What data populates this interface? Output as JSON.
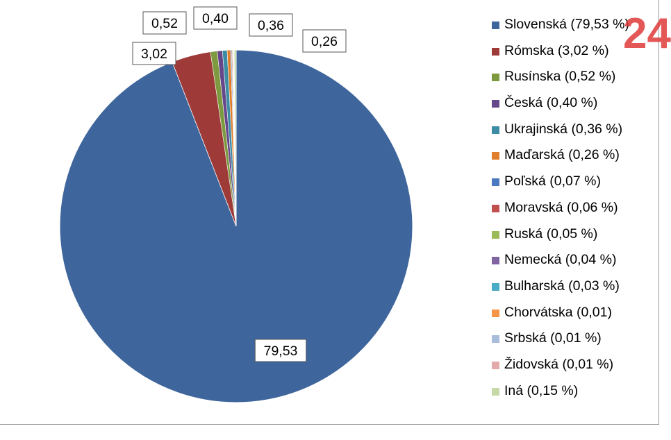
{
  "chart_data": {
    "type": "pie",
    "slices": [
      {
        "label": "Slovenská (79,53 %)",
        "value": 79.53,
        "data_label": "79,53",
        "color": "#3E659C"
      },
      {
        "label": "Rómska (3,02 %)",
        "value": 3.02,
        "data_label": "3,02",
        "color": "#9E3B39"
      },
      {
        "label": "Rusínska (0,52 %)",
        "value": 0.52,
        "data_label": "0,52",
        "color": "#7E9A3F"
      },
      {
        "label": "Česká (0,40 %)",
        "value": 0.4,
        "data_label": "0,40",
        "color": "#65478A"
      },
      {
        "label": "Ukrajinská (0,36 %)",
        "value": 0.36,
        "data_label": "0,36",
        "color": "#3B8CA4"
      },
      {
        "label": "Maďarská (0,26 %)",
        "value": 0.26,
        "data_label": "0,26",
        "color": "#E07E2C"
      },
      {
        "label": "Poľská (0,07 %)",
        "value": 0.07,
        "data_label": "",
        "color": "#4A7AC0"
      },
      {
        "label": "Moravská (0,06 %)",
        "value": 0.06,
        "data_label": "",
        "color": "#C0504D"
      },
      {
        "label": "Ruská (0,05 %)",
        "value": 0.05,
        "data_label": "",
        "color": "#9BBB59"
      },
      {
        "label": "Nemecká (0,04 %)",
        "value": 0.04,
        "data_label": "",
        "color": "#8064A2"
      },
      {
        "label": "Bulharská (0,03 %)",
        "value": 0.03,
        "data_label": "",
        "color": "#4BACC6"
      },
      {
        "label": "Chorvátska (0,01)",
        "value": 0.01,
        "data_label": "",
        "color": "#F79646"
      },
      {
        "label": "Srbská (0,01 %)",
        "value": 0.01,
        "data_label": "",
        "color": "#A9BCDB"
      },
      {
        "label": "Židovská (0,01 %)",
        "value": 0.01,
        "data_label": "",
        "color": "#E2AAAA"
      },
      {
        "label": "Iná (0,15 %)",
        "value": 0.15,
        "data_label": "",
        "color": "#C5D9A8"
      }
    ],
    "legend_position": "right"
  },
  "watermark": {
    "text": "24",
    "color": "#E03A3A"
  }
}
